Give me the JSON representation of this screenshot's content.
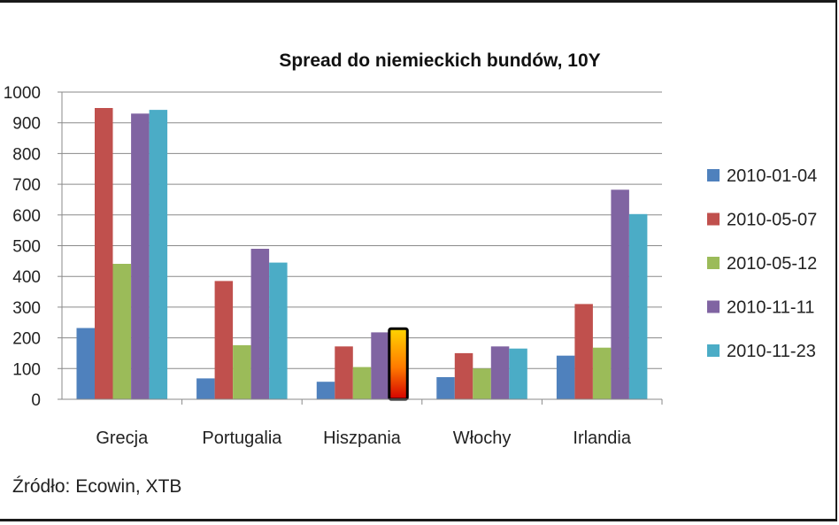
{
  "chart_data": {
    "type": "bar",
    "title": "Spread do niemieckich bundów, 10Y",
    "categories": [
      "Grecja",
      "Portugalia",
      "Hiszpania",
      "Włochy",
      "Irlandia"
    ],
    "series": [
      {
        "name": "2010-01-04",
        "color": "#4F81BD",
        "values": [
          232,
          68,
          57,
          72,
          142
        ]
      },
      {
        "name": "2010-05-07",
        "color": "#C0504D",
        "values": [
          948,
          385,
          172,
          150,
          310
        ]
      },
      {
        "name": "2010-05-12",
        "color": "#9BBB59",
        "values": [
          441,
          176,
          105,
          100,
          168
        ]
      },
      {
        "name": "2010-11-11",
        "color": "#8064A2",
        "values": [
          930,
          490,
          218,
          172,
          682
        ]
      },
      {
        "name": "2010-11-23",
        "color": "#4BACC6",
        "values": [
          942,
          445,
          230,
          165,
          603
        ]
      }
    ],
    "highlight": {
      "category": "Hiszpania",
      "series": "2010-11-23",
      "colors": [
        "#ffd400",
        "#ff7a00",
        "#d40000"
      ]
    },
    "ylim": [
      0,
      1000
    ],
    "yticks": [
      0,
      100,
      200,
      300,
      400,
      500,
      600,
      700,
      800,
      900,
      1000
    ],
    "xlabel": "",
    "ylabel": "",
    "grid": true,
    "legend_position": "right"
  },
  "source": "Źródło: Ecowin, XTB"
}
